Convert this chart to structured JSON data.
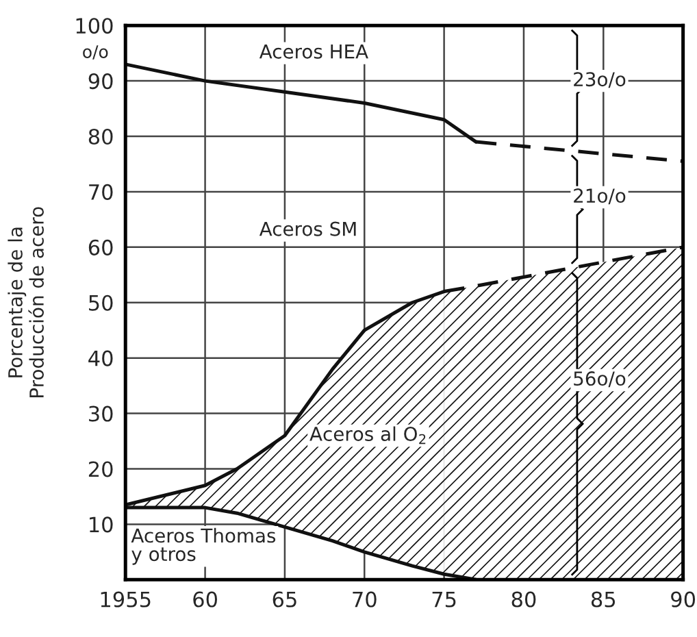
{
  "chart_data": {
    "type": "line",
    "ylabel": "Porcentaje de la\nProducción de acero",
    "xlim": [
      1955,
      1990
    ],
    "ylim": [
      0,
      100
    ],
    "xticks": [
      1955,
      {
        "value": 1960,
        "label": "60"
      },
      {
        "value": 1965,
        "label": "65"
      },
      {
        "value": 1970,
        "label": "70"
      },
      {
        "value": 1975,
        "label": "75"
      },
      {
        "value": 1980,
        "label": "80"
      },
      {
        "value": 1985,
        "label": "85"
      },
      {
        "value": 1990,
        "label": "90"
      }
    ],
    "yticks": [
      10,
      20,
      30,
      40,
      50,
      60,
      70,
      80,
      90,
      100
    ],
    "grid": true,
    "marker": "none",
    "series": [
      {
        "color": "#111111",
        "line_style": "solid",
        "x": [
          1955,
          1960,
          1965,
          1970,
          1975,
          1977
        ],
        "values": [
          93,
          90,
          88,
          86,
          83,
          79
        ]
      },
      {
        "color": "#111111",
        "line_style": "dashed",
        "x": [
          1977,
          1990
        ],
        "values": [
          79,
          75.5
        ]
      },
      {
        "color": "#111111",
        "line_style": "solid",
        "x": [
          1955,
          1960,
          1962,
          1965,
          1968,
          1970,
          1973,
          1975
        ],
        "values": [
          13.5,
          17,
          20,
          26,
          38,
          45,
          50,
          52
        ]
      },
      {
        "color": "#111111",
        "line_style": "dashed",
        "x": [
          1975,
          1977,
          1990
        ],
        "values": [
          52,
          53,
          60
        ]
      },
      {
        "color": "#111111",
        "line_style": "solid",
        "x": [
          1955,
          1960,
          1962,
          1965,
          1968,
          1970,
          1973,
          1975,
          1977
        ],
        "values": [
          13,
          13,
          12,
          9.5,
          7,
          5,
          2.5,
          1,
          0
        ]
      }
    ],
    "annotations": [
      "o/o",
      "Aceros HEA",
      "Aceros SM",
      "Aceros al O$_{2}$",
      "Aceros Thomas\ny otros",
      "23o/o",
      "21o/o",
      "56o/o"
    ]
  }
}
